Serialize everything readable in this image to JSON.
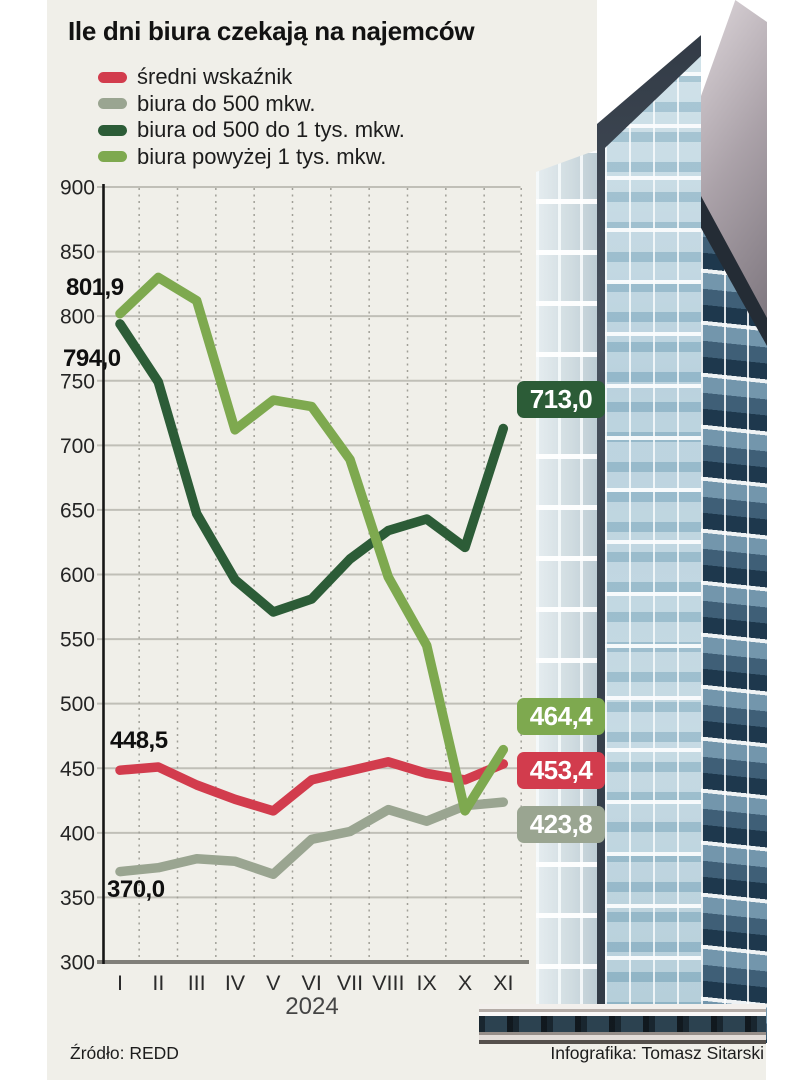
{
  "title": "Ile dni biura czekają na najemców",
  "legend": {
    "items": [
      {
        "label": "średni wskaźnik",
        "color": "#d23c4d"
      },
      {
        "label": "biura do 500 mkw.",
        "color": "#9aa591"
      },
      {
        "label": "biura od 500 do 1 tys. mkw.",
        "color": "#2c5c37"
      },
      {
        "label": "biura powyżej 1 tys. mkw.",
        "color": "#7ea94f"
      }
    ]
  },
  "chart_data": {
    "type": "line",
    "x": [
      "I",
      "II",
      "III",
      "IV",
      "V",
      "VI",
      "VII",
      "VIII",
      "IX",
      "X",
      "XI"
    ],
    "xlabel": "2024",
    "ylabel": "",
    "ylim": [
      300,
      900
    ],
    "yticks": [
      900,
      850,
      800,
      750,
      700,
      650,
      600,
      550,
      500,
      450,
      400,
      350,
      300
    ],
    "grid": {
      "horizontal": "solid",
      "vertical": "dashed-between-months"
    },
    "series": [
      {
        "name": "średni wskaźnik",
        "color": "#d23c4d",
        "values": [
          448.5,
          451,
          437,
          426,
          417,
          441,
          448,
          455,
          446,
          441,
          453.4
        ],
        "start_label": "448,5",
        "end_label": "453,4"
      },
      {
        "name": "biura do 500 mkw.",
        "color": "#9aa591",
        "values": [
          370.0,
          373,
          380,
          378,
          368,
          395,
          401,
          418,
          409,
          421,
          423.8
        ],
        "start_label": "370,0",
        "end_label": "423,8"
      },
      {
        "name": "biura od 500 do 1 tys. mkw.",
        "color": "#2c5c37",
        "values": [
          794.0,
          749,
          647,
          596,
          571,
          581,
          612,
          634,
          643,
          621,
          713.0
        ],
        "start_label": "794,0",
        "end_label": "713,0"
      },
      {
        "name": "biura powyżej 1 tys. mkw.",
        "color": "#7ea94f",
        "values": [
          801.9,
          830,
          812,
          712,
          735,
          730,
          689,
          598,
          545,
          417,
          464.4
        ],
        "start_label": "801,9",
        "end_label": "464,4"
      }
    ]
  },
  "footer": {
    "source": "Źródło: REDD",
    "credit": "Infografika: Tomasz Sitarski"
  }
}
